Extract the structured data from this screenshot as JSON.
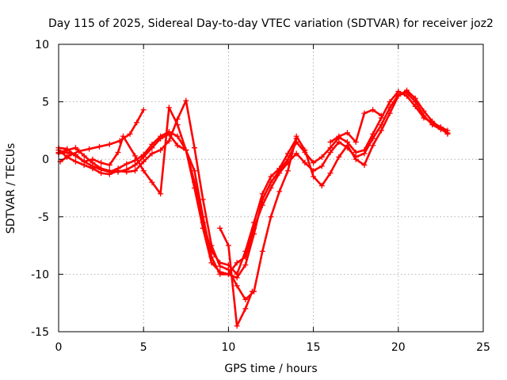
{
  "chart_data": {
    "type": "scatter",
    "title": "Day 115 of 2025, Sidereal Day-to-day VTEC variation (SDTVAR) for receiver joz2",
    "xlabel": "GPS time / hours",
    "ylabel": "SDTVAR / TECUs",
    "xlim": [
      0,
      25
    ],
    "ylim": [
      -15,
      10
    ],
    "xticks": [
      "0",
      "5",
      "10",
      "15",
      "20",
      "25"
    ],
    "yticks": [
      "-15",
      "-10",
      "-5",
      "0",
      "5",
      "10"
    ],
    "grid": true,
    "legend": "none",
    "marker": "plus",
    "color": "#ff0000",
    "series": [
      {
        "x": [
          0.0,
          0.5,
          1.0,
          1.5,
          2.0,
          2.5,
          3.0,
          3.5,
          4.0,
          4.5,
          5.0,
          5.5,
          6.0,
          6.5,
          7.0,
          7.5,
          8.0,
          8.5,
          9.0,
          9.5,
          10.0,
          10.5,
          11.0,
          11.5,
          12.0,
          12.5,
          13.0,
          13.5,
          14.0,
          14.5,
          15.0,
          15.5,
          16.0,
          16.5,
          17.0,
          17.5,
          18.0,
          18.5,
          19.0,
          19.5,
          20.0,
          20.5,
          21.0,
          21.5,
          22.0,
          22.5,
          22.9
        ],
        "y": [
          0.6,
          0.8,
          1.0,
          0.3,
          -0.3,
          -0.8,
          -1.0,
          -1.1,
          -0.9,
          -0.5,
          0.2,
          1.0,
          1.8,
          2.2,
          1.2,
          0.8,
          -1.0,
          -5.0,
          -8.5,
          -10.0,
          -10.0,
          -9.0,
          -8.5,
          -6.0,
          -4.0,
          -2.5,
          -1.2,
          -0.3,
          0.5,
          -0.3,
          -1.0,
          -0.6,
          0.6,
          1.5,
          1.0,
          0.2,
          0.5,
          1.8,
          3.0,
          4.5,
          5.6,
          5.8,
          5.0,
          3.8,
          3.0,
          2.6,
          2.3
        ]
      },
      {
        "x": [
          0.0,
          0.5,
          1.0,
          1.5,
          2.0,
          2.5,
          3.0,
          3.5,
          4.0,
          4.5,
          5.0,
          5.5,
          6.0,
          6.5,
          7.0,
          7.5,
          8.0,
          8.5,
          9.0,
          9.5,
          10.0,
          10.5,
          11.0,
          11.5,
          12.0,
          12.5,
          13.0,
          13.5,
          14.0,
          14.5,
          15.0,
          15.5,
          16.0,
          16.5,
          17.0,
          17.5,
          18.0,
          18.5,
          19.0,
          19.5,
          20.0,
          20.5,
          21.0,
          21.5,
          22.0,
          22.5,
          22.9
        ],
        "y": [
          0.5,
          0.6,
          0.4,
          -0.2,
          -0.6,
          -0.9,
          -1.1,
          -0.8,
          -0.4,
          -0.1,
          0.4,
          1.3,
          2.0,
          2.4,
          2.0,
          0.8,
          -2.5,
          -6.0,
          -9.0,
          -9.8,
          -10.0,
          -10.3,
          -9.2,
          -6.5,
          -3.5,
          -2.0,
          -1.0,
          0.0,
          1.5,
          0.6,
          -0.3,
          0.2,
          1.0,
          1.9,
          1.5,
          0.6,
          0.8,
          2.2,
          3.6,
          5.0,
          5.9,
          5.5,
          4.6,
          3.6,
          3.2,
          2.8,
          2.5
        ]
      },
      {
        "x": [
          0.0,
          0.5,
          1.0,
          1.5,
          2.0,
          2.5,
          3.0,
          3.5,
          4.0,
          4.5,
          5.0,
          5.5,
          6.0,
          6.5,
          7.0,
          7.5,
          8.0,
          8.5,
          9.0,
          9.5,
          10.0,
          10.5,
          11.0,
          11.5,
          12.0,
          12.5,
          13.0,
          13.5,
          14.0,
          14.5,
          15.0,
          15.5,
          16.0,
          16.5,
          17.0,
          17.5,
          18.0,
          18.5,
          19.0,
          19.5,
          20.0,
          20.5,
          21.0,
          21.5,
          22.0,
          22.5,
          22.9
        ],
        "y": [
          0.8,
          0.2,
          -0.2,
          -0.5,
          -0.8,
          -1.2,
          -1.3,
          -1.0,
          -1.1,
          -1.0,
          -0.2,
          0.5,
          0.8,
          1.6,
          3.5,
          5.1,
          1.0,
          -3.5,
          -7.5,
          -9.3,
          -9.6,
          -11.0,
          -12.2,
          -11.5,
          -8.0,
          -5.0,
          -2.8,
          -1.0,
          2.0,
          0.8,
          -1.5,
          -2.3,
          -1.2,
          0.2,
          1.2,
          0.0,
          -0.5,
          1.2,
          2.5,
          4.0,
          5.5,
          6.0,
          5.3,
          4.2,
          3.3,
          2.7,
          2.2
        ]
      },
      {
        "x": [
          0.0,
          0.5,
          1.0,
          1.5,
          2.0,
          2.5,
          3.0,
          3.5,
          3.8,
          4.5,
          5.0,
          5.5,
          6.0,
          6.5,
          7.0,
          7.5,
          8.0,
          8.5,
          9.0,
          9.5,
          10.0,
          10.5,
          11.0,
          11.5,
          12.0,
          12.5,
          13.0,
          13.5,
          14.0
        ],
        "y": [
          1.0,
          0.9,
          0.3,
          -0.2,
          0.0,
          -0.3,
          -0.5,
          0.6,
          2.0,
          0.3,
          -1.0,
          -2.0,
          -3.0,
          4.5,
          3.0,
          0.8,
          -2.0,
          -5.5,
          -8.0,
          -9.0,
          -9.2,
          -10.0,
          -8.0,
          -5.5,
          -3.0,
          -1.5,
          -0.8,
          0.5,
          1.8
        ]
      },
      {
        "x": [
          0.1,
          0.6,
          1.2,
          1.8,
          2.4,
          3.0,
          3.6,
          4.2,
          4.6,
          5.0
        ],
        "y": [
          -0.2,
          0.3,
          0.7,
          0.9,
          1.1,
          1.3,
          1.6,
          2.2,
          3.2,
          4.3
        ]
      },
      {
        "x": [
          9.5,
          10.0,
          10.5,
          11.0,
          11.4
        ],
        "y": [
          -6.0,
          -7.5,
          -14.5,
          -13.0,
          -11.5
        ]
      },
      {
        "x": [
          16.0,
          16.5,
          17.0,
          17.5,
          18.0,
          18.5,
          19.0
        ],
        "y": [
          1.5,
          2.0,
          2.3,
          1.5,
          4.0,
          4.3,
          3.8
        ]
      }
    ]
  }
}
